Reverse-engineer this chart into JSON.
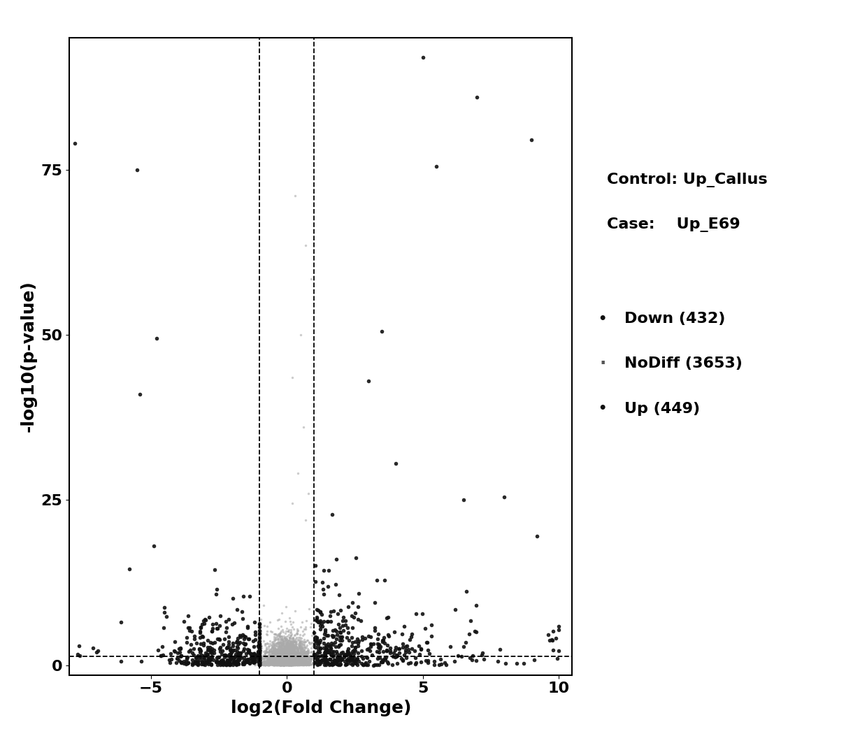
{
  "title": "",
  "xlabel": "log2(Fold Change)",
  "ylabel": "-log10(p-value)",
  "xlim": [
    -8,
    10.5
  ],
  "ylim": [
    -1.5,
    95
  ],
  "xticks": [
    -5,
    0,
    5,
    10
  ],
  "yticks": [
    0,
    25,
    50,
    75
  ],
  "vline1": -1.0,
  "vline2": 1.0,
  "hline": 1.3,
  "down_count": 432,
  "nodiff_count": 3653,
  "up_count": 449,
  "control_label": "Control: Up_Callus",
  "case_label": "Case:    Up_E69",
  "down_color": "#111111",
  "nodiff_color": "#aaaaaa",
  "up_color": "#111111",
  "background_color": "#ffffff",
  "seed": 42,
  "xlabel_fontsize": 18,
  "ylabel_fontsize": 18,
  "tick_fontsize": 16,
  "legend_fontsize": 16,
  "annotation_fontsize": 16
}
